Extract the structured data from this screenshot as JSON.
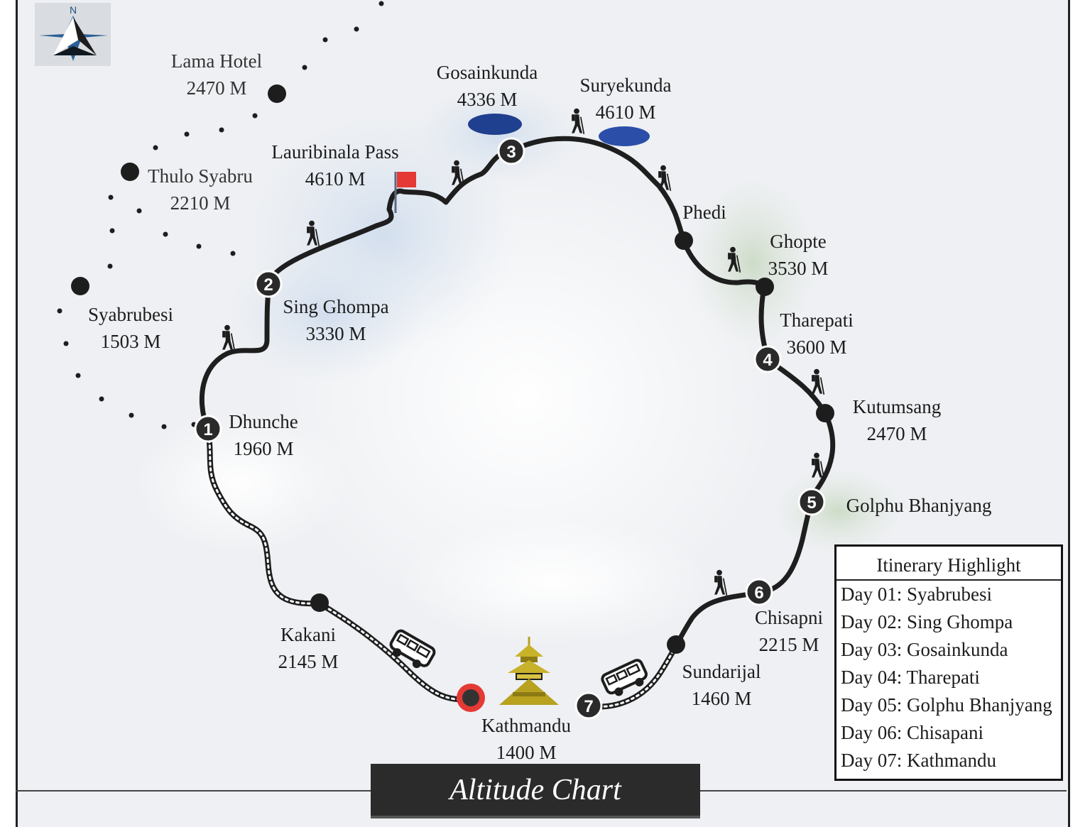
{
  "compass": {
    "north_label": "N",
    "icon": "compass-icon"
  },
  "colors": {
    "route": "#1e1e1e",
    "lake": "#1f3f8f",
    "flag": "#e53935",
    "end_ring": "#e53935",
    "temple": "#b8a21f"
  },
  "waypoints": {
    "lama_hotel": {
      "name": "Lama Hotel",
      "altitude": "2470 M"
    },
    "thulo_syabru": {
      "name": "Thulo Syabru",
      "altitude": "2210 M"
    },
    "syabrubesi": {
      "name": "Syabrubesi",
      "altitude": "1503 M"
    },
    "lauribinala": {
      "name": "Lauribinala Pass",
      "altitude": "4610 M"
    },
    "gosainkunda": {
      "name": "Gosainkunda",
      "altitude": "4336 M"
    },
    "suryekunda": {
      "name": "Suryekunda",
      "altitude": "4610 M"
    },
    "phedi": {
      "name": "Phedi"
    },
    "ghopte": {
      "name": "Ghopte",
      "altitude": "3530 M"
    },
    "sing_ghompa": {
      "name": "Sing Ghompa",
      "altitude": "3330 M"
    },
    "tharepati": {
      "name": "Tharepati",
      "altitude": "3600 M"
    },
    "dhunche": {
      "name": "Dhunche",
      "altitude": "1960 M"
    },
    "kutumsang": {
      "name": "Kutumsang",
      "altitude": "2470 M"
    },
    "golphu": {
      "name": "Golphu Bhanjyang"
    },
    "chisapni": {
      "name": "Chisapni",
      "altitude": "2215 M"
    },
    "kakani": {
      "name": "Kakani",
      "altitude": "2145 M"
    },
    "sundarijal": {
      "name": "Sundarijal",
      "altitude": "1460 M"
    },
    "kathmandu": {
      "name": "Kathmandu",
      "altitude": "1400 M"
    }
  },
  "day_markers": [
    "1",
    "2",
    "3",
    "4",
    "5",
    "6",
    "7"
  ],
  "itinerary": {
    "title": "Itinerary Highlight",
    "days": [
      "Day 01: Syabrubesi",
      "Day 02: Sing Ghompa",
      "Day 03: Gosainkunda",
      "Day 04: Tharepati",
      "Day 05: Golphu Bhanjyang",
      "Day 06: Chisapani",
      "Day 07: Kathmandu"
    ]
  },
  "title": "Altitude Chart"
}
